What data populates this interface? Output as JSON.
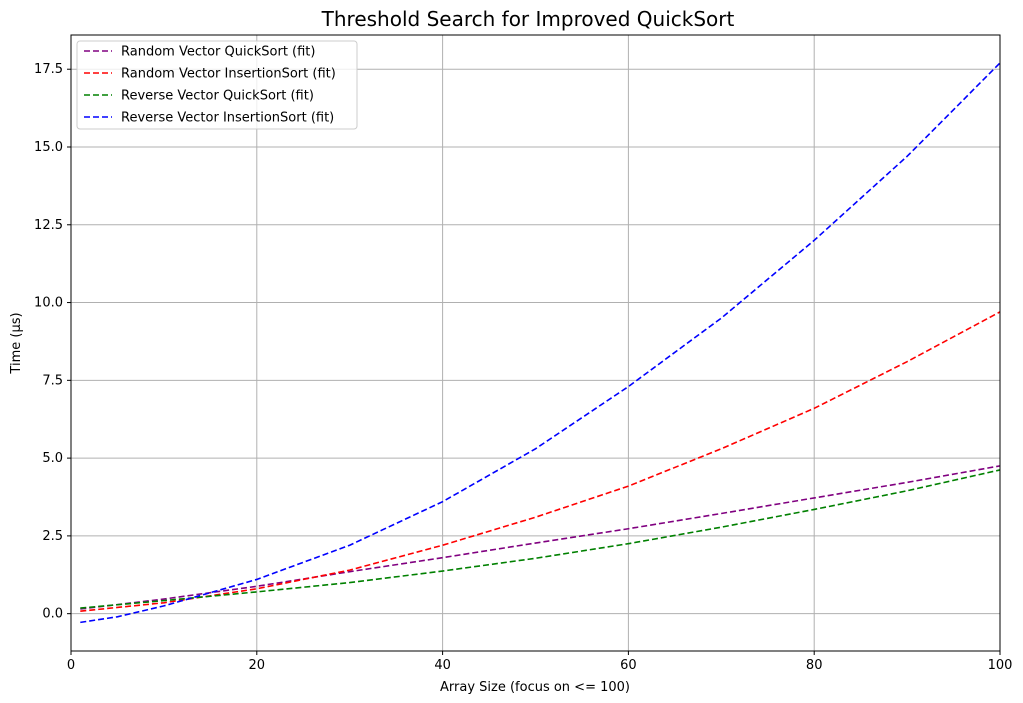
{
  "chart_data": {
    "type": "line",
    "title": "Threshold Search for Improved QuickSort",
    "xlabel": "Array Size (focus on <= 100)",
    "ylabel": "Time (µs)",
    "xlim": [
      0,
      100
    ],
    "ylim": [
      -1.2,
      18.6
    ],
    "xticks": [
      0,
      20,
      40,
      60,
      80,
      100
    ],
    "yticks": [
      0.0,
      2.5,
      5.0,
      7.5,
      10.0,
      12.5,
      15.0,
      17.5
    ],
    "grid": true,
    "legend_position": "top-left",
    "series": [
      {
        "name": "Random Vector QuickSort (fit)",
        "color": "#800080",
        "style": "dashed",
        "x": [
          1,
          10,
          20,
          30,
          40,
          50,
          60,
          70,
          80,
          90,
          100
        ],
        "y": [
          0.15,
          0.47,
          0.88,
          1.35,
          1.8,
          2.27,
          2.73,
          3.22,
          3.72,
          4.22,
          4.75
        ]
      },
      {
        "name": "Random Vector InsertionSort (fit)",
        "color": "#ff0000",
        "style": "dashed",
        "x": [
          1,
          10,
          20,
          30,
          40,
          50,
          60,
          70,
          80,
          90,
          100
        ],
        "y": [
          0.08,
          0.35,
          0.8,
          1.4,
          2.2,
          3.1,
          4.1,
          5.3,
          6.6,
          8.1,
          9.7
        ]
      },
      {
        "name": "Reverse Vector QuickSort (fit)",
        "color": "#008000",
        "style": "dashed",
        "x": [
          1,
          10,
          20,
          30,
          40,
          50,
          60,
          70,
          80,
          90,
          100
        ],
        "y": [
          0.18,
          0.42,
          0.7,
          1.0,
          1.37,
          1.78,
          2.25,
          2.78,
          3.35,
          3.95,
          4.62
        ]
      },
      {
        "name": "Reverse Vector InsertionSort (fit)",
        "color": "#0000ff",
        "style": "dashed",
        "x": [
          1,
          5,
          10,
          20,
          30,
          40,
          50,
          60,
          70,
          80,
          90,
          100
        ],
        "y": [
          -0.28,
          -0.1,
          0.25,
          1.1,
          2.2,
          3.6,
          5.3,
          7.3,
          9.5,
          12.0,
          14.7,
          17.7
        ]
      }
    ]
  }
}
